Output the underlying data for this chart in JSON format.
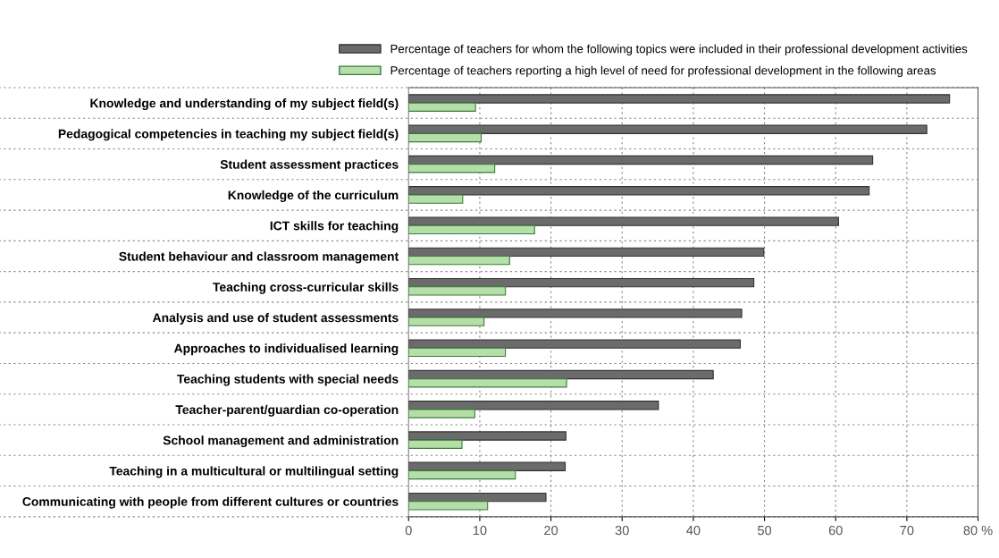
{
  "chart_data": {
    "type": "bar",
    "orientation": "horizontal",
    "categories": [
      "Knowledge and understanding of my subject field(s)",
      "Pedagogical competencies in teaching my subject field(s)",
      "Student assessment practices",
      "Knowledge of the curriculum",
      "ICT skills for teaching",
      "Student behaviour and classroom management",
      "Teaching cross-curricular skills",
      "Analysis and use of student assessments",
      "Approaches to individualised learning",
      "Teaching students with special needs",
      "Teacher-parent/guardian co-operation",
      "School management and administration",
      "Teaching in a multicultural or multilingual setting",
      "Communicating with people from different cultures or countries"
    ],
    "series": [
      {
        "name": "Percentage of teachers for whom the following topics were included in their professional development activities",
        "color": "#6b6b6b",
        "values": [
          76.0,
          72.8,
          65.2,
          64.7,
          60.4,
          49.9,
          48.5,
          46.8,
          46.6,
          42.8,
          35.1,
          22.1,
          22.0,
          19.3
        ]
      },
      {
        "name": "Percentage of teachers reporting a high level of need for professional development in the following areas",
        "color": "#b5dfa8",
        "values": [
          9.4,
          10.2,
          12.1,
          7.6,
          17.7,
          14.2,
          13.6,
          10.6,
          13.6,
          22.2,
          9.3,
          7.5,
          15.0,
          11.1
        ]
      }
    ],
    "xlim": [
      0,
      80
    ],
    "xticks": [
      0,
      10,
      20,
      30,
      40,
      50,
      60,
      70,
      {
        "value": 80,
        "label": "80 %"
      }
    ],
    "grid": true,
    "legend": "top"
  }
}
